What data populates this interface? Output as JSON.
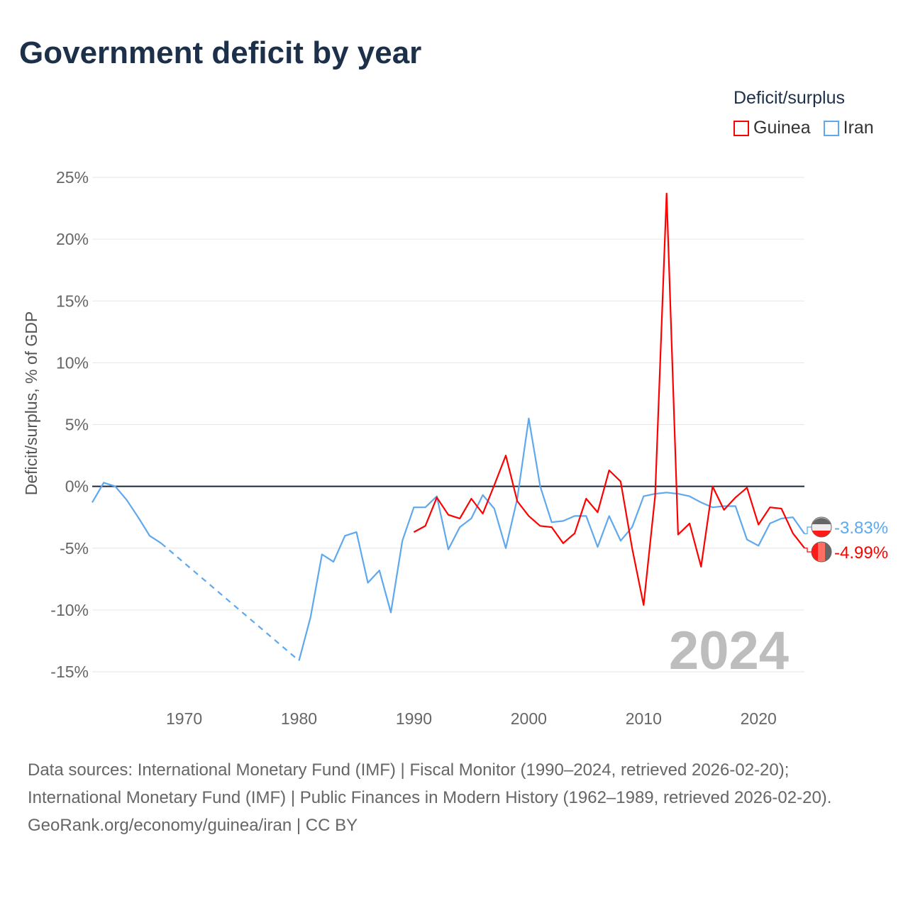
{
  "title": "Government deficit by year",
  "legend": {
    "title": "Deficit/surplus",
    "items": [
      {
        "name": "Guinea",
        "color": "#ff0000"
      },
      {
        "name": "Iran",
        "color": "#5ea8ee"
      }
    ]
  },
  "watermark_year": "2024",
  "footer": {
    "sources": "Data sources: International Monetary Fund (IMF) | Fiscal Monitor (1990–2024, retrieved 2026-02-20); International Monetary Fund (IMF) | Public Finances in Modern History (1962–1989, retrieved 2026-02-20).",
    "credit": "GeoRank.org/economy/guinea/iran | CC BY"
  },
  "chart_data": {
    "type": "line",
    "title": "Government deficit by year",
    "ylabel": "Deficit/surplus, % of GDP",
    "xlabel": "",
    "xlim": [
      1962,
      2024
    ],
    "ylim": [
      -15,
      25
    ],
    "x_ticks": [
      1970,
      1980,
      1990,
      2000,
      2010,
      2020
    ],
    "y_ticks": [
      {
        "v": 25,
        "label": "25%"
      },
      {
        "v": 20,
        "label": "20%"
      },
      {
        "v": 15,
        "label": "15%"
      },
      {
        "v": 10,
        "label": "10%"
      },
      {
        "v": 5,
        "label": "5%"
      },
      {
        "v": 0,
        "label": "0%"
      },
      {
        "v": -5,
        "label": "-5%"
      },
      {
        "v": -10,
        "label": "-10%"
      },
      {
        "v": -15,
        "label": "-15%"
      }
    ],
    "grid": true,
    "legend_position": "top-right",
    "series": [
      {
        "name": "Iran",
        "color": "#5ea8ee",
        "end_label": "-3.83%",
        "points": [
          [
            1962,
            -1.3
          ],
          [
            1963,
            0.3
          ],
          [
            1964,
            0.0
          ],
          [
            1965,
            -1.1
          ],
          [
            1966,
            -2.5
          ],
          [
            1967,
            -4.0
          ],
          [
            1968,
            -4.6
          ],
          [
            1980,
            -14.1
          ],
          [
            1981,
            -10.6
          ],
          [
            1982,
            -5.5
          ],
          [
            1983,
            -6.1
          ],
          [
            1984,
            -4.0
          ],
          [
            1985,
            -3.7
          ],
          [
            1986,
            -7.8
          ],
          [
            1987,
            -6.8
          ],
          [
            1988,
            -10.2
          ],
          [
            1989,
            -4.4
          ],
          [
            1990,
            -1.7
          ],
          [
            1991,
            -1.7
          ],
          [
            1992,
            -0.8
          ],
          [
            1993,
            -5.1
          ],
          [
            1994,
            -3.3
          ],
          [
            1995,
            -2.6
          ],
          [
            1996,
            -0.7
          ],
          [
            1997,
            -1.8
          ],
          [
            1998,
            -5.0
          ],
          [
            1999,
            -1.0
          ],
          [
            2000,
            5.5
          ],
          [
            2001,
            0.0
          ],
          [
            2002,
            -2.9
          ],
          [
            2003,
            -2.8
          ],
          [
            2004,
            -2.4
          ],
          [
            2005,
            -2.4
          ],
          [
            2006,
            -4.9
          ],
          [
            2007,
            -2.4
          ],
          [
            2008,
            -4.4
          ],
          [
            2009,
            -3.3
          ],
          [
            2010,
            -0.8
          ],
          [
            2011,
            -0.6
          ],
          [
            2012,
            -0.5
          ],
          [
            2013,
            -0.6
          ],
          [
            2014,
            -0.8
          ],
          [
            2015,
            -1.3
          ],
          [
            2016,
            -1.7
          ],
          [
            2017,
            -1.6
          ],
          [
            2018,
            -1.6
          ],
          [
            2019,
            -4.3
          ],
          [
            2020,
            -4.8
          ],
          [
            2021,
            -3.0
          ],
          [
            2022,
            -2.6
          ],
          [
            2023,
            -2.5
          ],
          [
            2024,
            -3.83
          ]
        ],
        "dashed_gap": [
          1968,
          1980
        ]
      },
      {
        "name": "Guinea",
        "color": "#ff0000",
        "end_label": "-4.99%",
        "points": [
          [
            1990,
            -3.7
          ],
          [
            1991,
            -3.2
          ],
          [
            1992,
            -0.9
          ],
          [
            1993,
            -2.3
          ],
          [
            1994,
            -2.6
          ],
          [
            1995,
            -1.0
          ],
          [
            1996,
            -2.2
          ],
          [
            1997,
            0.1
          ],
          [
            1998,
            2.5
          ],
          [
            1999,
            -1.2
          ],
          [
            2000,
            -2.4
          ],
          [
            2001,
            -3.2
          ],
          [
            2002,
            -3.3
          ],
          [
            2003,
            -4.6
          ],
          [
            2004,
            -3.8
          ],
          [
            2005,
            -1.0
          ],
          [
            2006,
            -2.1
          ],
          [
            2007,
            1.3
          ],
          [
            2008,
            0.4
          ],
          [
            2009,
            -5.0
          ],
          [
            2010,
            -9.6
          ],
          [
            2011,
            -0.8
          ],
          [
            2012,
            23.7
          ],
          [
            2013,
            -3.9
          ],
          [
            2014,
            -3.0
          ],
          [
            2015,
            -6.5
          ],
          [
            2016,
            0.0
          ],
          [
            2017,
            -1.9
          ],
          [
            2018,
            -0.9
          ],
          [
            2019,
            -0.1
          ],
          [
            2020,
            -3.1
          ],
          [
            2021,
            -1.7
          ],
          [
            2022,
            -1.8
          ],
          [
            2023,
            -3.8
          ],
          [
            2024,
            -4.99
          ]
        ]
      }
    ]
  }
}
